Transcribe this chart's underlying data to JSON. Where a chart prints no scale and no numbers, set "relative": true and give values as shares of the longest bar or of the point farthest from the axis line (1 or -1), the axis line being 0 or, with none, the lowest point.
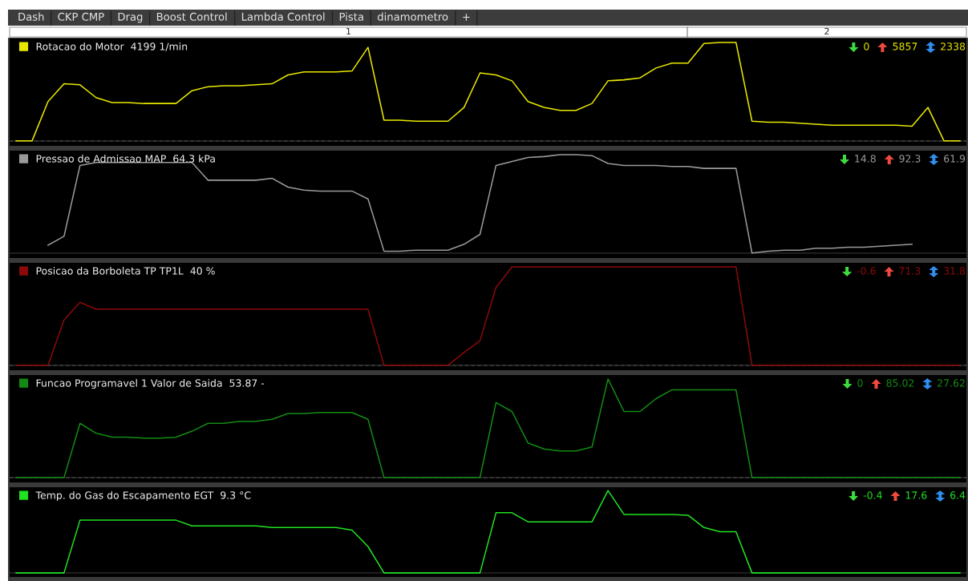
{
  "chart_data": [
    {
      "type": "other",
      "annotations": [
        "Dash",
        "CKP CMP",
        "Drag",
        "Boost Control",
        "Lambda Control",
        "Pista",
        "dinamometro",
        "+",
        "1",
        "2"
      ]
    },
    {
      "type": "line",
      "relative": true,
      "legend": "top left",
      "categories": [
        null,
        null,
        null,
        null,
        null,
        null,
        null,
        null,
        null,
        null,
        null,
        null,
        null,
        null,
        null,
        null,
        null,
        null,
        null,
        null,
        null,
        null,
        null,
        null,
        null,
        null,
        null,
        null,
        null,
        null,
        null,
        null,
        null,
        null,
        null,
        null,
        null,
        null,
        null,
        null,
        null,
        null,
        null,
        null,
        null,
        null,
        null,
        null,
        null,
        null,
        null,
        null,
        null,
        null,
        null,
        null,
        null,
        null,
        null,
        null
      ],
      "series": [
        {
          "name": "Rotacao do Motor  4199 1/min",
          "color": "#e8e800",
          "values": [
            0,
            0,
            0.4,
            0.58,
            0.57,
            0.44,
            0.39,
            0.39,
            0.38,
            0.38,
            0.38,
            0.51,
            0.55,
            0.56,
            0.56,
            0.57,
            0.58,
            0.67,
            0.7,
            0.7,
            0.7,
            0.71,
            0.95,
            0.21,
            0.21,
            0.2,
            0.2,
            0.2,
            0.34,
            0.69,
            0.67,
            0.61,
            0.4,
            0.34,
            0.31,
            0.31,
            0.38,
            0.61,
            0.62,
            0.64,
            0.74,
            0.79,
            0.79,
            0.99,
            1.0,
            1.0,
            0.2,
            0.19,
            0.19,
            0.18,
            0.17,
            0.16,
            0.16,
            0.16,
            0.16,
            0.16,
            0.15,
            0.34,
            0,
            0
          ]
        }
      ],
      "ref_lines": [
        {
          "axis": "y",
          "value": 0,
          "color": "#707070",
          "line_style": "dashed"
        }
      ],
      "annotations": [
        "0",
        "5857",
        "2338"
      ]
    },
    {
      "type": "line",
      "relative": true,
      "legend": "top left",
      "categories": [
        null,
        null,
        null,
        null,
        null,
        null,
        null,
        null,
        null,
        null,
        null,
        null,
        null,
        null,
        null,
        null,
        null,
        null,
        null,
        null,
        null,
        null,
        null,
        null,
        null,
        null,
        null,
        null,
        null,
        null,
        null,
        null,
        null,
        null,
        null,
        null,
        null,
        null,
        null,
        null,
        null,
        null,
        null,
        null,
        null,
        null,
        null,
        null,
        null,
        null,
        null,
        null,
        null,
        null,
        null,
        null,
        null,
        null,
        null,
        null
      ],
      "series": [
        {
          "name": "Pressao de Admissao MAP  64.3 kPa",
          "color": "#9a9a9a",
          "values": [
            null,
            null,
            0.08,
            0.17,
            0.89,
            0.92,
            0.92,
            0.92,
            0.92,
            0.92,
            0.92,
            0.92,
            0.74,
            0.74,
            0.74,
            0.74,
            0.76,
            0.67,
            0.64,
            0.63,
            0.63,
            0.63,
            0.55,
            0.02,
            0.02,
            0.03,
            0.03,
            0.03,
            0.09,
            0.19,
            0.89,
            0.93,
            0.97,
            0.98,
            1.0,
            1.0,
            0.99,
            0.91,
            0.89,
            0.89,
            0.89,
            0.88,
            0.88,
            0.86,
            0.86,
            0.86,
            0,
            0.02,
            0.03,
            0.03,
            0.05,
            0.05,
            0.06,
            0.06,
            0.07,
            0.08,
            0.09,
            null,
            null,
            null
          ]
        }
      ],
      "annotations": [
        "14.8",
        "92.3",
        "61.9"
      ]
    },
    {
      "type": "line",
      "relative": true,
      "legend": "top left",
      "categories": [
        null,
        null,
        null,
        null,
        null,
        null,
        null,
        null,
        null,
        null,
        null,
        null,
        null,
        null,
        null,
        null,
        null,
        null,
        null,
        null,
        null,
        null,
        null,
        null,
        null,
        null,
        null,
        null,
        null,
        null,
        null,
        null,
        null,
        null,
        null,
        null,
        null,
        null,
        null,
        null,
        null,
        null,
        null,
        null,
        null,
        null,
        null,
        null,
        null,
        null,
        null,
        null,
        null,
        null,
        null,
        null,
        null,
        null,
        null,
        null
      ],
      "series": [
        {
          "name": "Posicao da Borboleta TP TP1L  40 %",
          "color": "#8b0a0a",
          "values": [
            0,
            0,
            0,
            0.46,
            0.64,
            0.57,
            0.57,
            0.57,
            0.57,
            0.57,
            0.57,
            0.57,
            0.57,
            0.57,
            0.57,
            0.57,
            0.57,
            0.57,
            0.57,
            0.57,
            0.57,
            0.57,
            0.57,
            0,
            0,
            0,
            0,
            0,
            0.13,
            0.25,
            0.79,
            1.0,
            1.0,
            1.0,
            1.0,
            1.0,
            1.0,
            1.0,
            1.0,
            1.0,
            1.0,
            1.0,
            1.0,
            1.0,
            1.0,
            1.0,
            0,
            0,
            0,
            0,
            0,
            0,
            0,
            0,
            0,
            0,
            0,
            0,
            0,
            0
          ]
        }
      ],
      "ref_lines": [
        {
          "axis": "y",
          "value": 0,
          "color": "#707070",
          "line_style": "dashed"
        }
      ],
      "annotations": [
        "-0.6",
        "71.3",
        "31.8"
      ]
    },
    {
      "type": "line",
      "relative": true,
      "legend": "top left",
      "categories": [
        null,
        null,
        null,
        null,
        null,
        null,
        null,
        null,
        null,
        null,
        null,
        null,
        null,
        null,
        null,
        null,
        null,
        null,
        null,
        null,
        null,
        null,
        null,
        null,
        null,
        null,
        null,
        null,
        null,
        null,
        null,
        null,
        null,
        null,
        null,
        null,
        null,
        null,
        null,
        null,
        null,
        null,
        null,
        null,
        null,
        null,
        null,
        null,
        null,
        null,
        null,
        null,
        null,
        null,
        null,
        null,
        null,
        null,
        null,
        null
      ],
      "series": [
        {
          "name": "Funcao Programavel 1 Valor de Saida  53.87 -",
          "color": "#138a13",
          "values": [
            0,
            0,
            0,
            0,
            0.55,
            0.45,
            0.41,
            0.41,
            0.4,
            0.4,
            0.41,
            0.47,
            0.55,
            0.55,
            0.57,
            0.57,
            0.59,
            0.65,
            0.65,
            0.66,
            0.66,
            0.66,
            0.59,
            0,
            0,
            0,
            0,
            0,
            0,
            0,
            0.76,
            0.67,
            0.35,
            0.29,
            0.27,
            0.27,
            0.31,
            1.0,
            0.67,
            0.67,
            0.8,
            0.89,
            0.89,
            0.89,
            0.89,
            0.89,
            0,
            0,
            0,
            0,
            0,
            0,
            0,
            0,
            0,
            0,
            0,
            0,
            0,
            0
          ]
        }
      ],
      "ref_lines": [
        {
          "axis": "y",
          "value": 0,
          "color": "#707070",
          "line_style": "dashed"
        }
      ],
      "annotations": [
        "0",
        "85.02",
        "27.62"
      ]
    },
    {
      "type": "line",
      "relative": true,
      "legend": "top left",
      "categories": [
        null,
        null,
        null,
        null,
        null,
        null,
        null,
        null,
        null,
        null,
        null,
        null,
        null,
        null,
        null,
        null,
        null,
        null,
        null,
        null,
        null,
        null,
        null,
        null,
        null,
        null,
        null,
        null,
        null,
        null,
        null,
        null,
        null,
        null,
        null,
        null,
        null,
        null,
        null,
        null,
        null,
        null,
        null,
        null,
        null,
        null,
        null,
        null,
        null,
        null,
        null,
        null,
        null,
        null,
        null,
        null,
        null,
        null,
        null,
        null
      ],
      "series": [
        {
          "name": "Temp. do Gas do Escapamento EGT  9.3 °C",
          "color": "#22e022",
          "values": [
            0,
            0,
            0,
            0,
            0.64,
            0.64,
            0.64,
            0.64,
            0.64,
            0.64,
            0.64,
            0.57,
            0.57,
            0.57,
            0.57,
            0.57,
            0.55,
            0.55,
            0.55,
            0.55,
            0.55,
            0.52,
            0.32,
            0,
            0,
            0,
            0,
            0,
            0,
            0,
            0.73,
            0.73,
            0.62,
            0.62,
            0.62,
            0.62,
            0.62,
            1.0,
            0.71,
            0.71,
            0.71,
            0.71,
            0.7,
            0.55,
            0.5,
            0.5,
            0,
            0,
            0,
            0,
            0,
            0,
            0,
            0,
            0,
            0,
            0,
            0,
            0,
            0
          ]
        }
      ],
      "annotations": [
        "-0.4",
        "17.6",
        "6.4"
      ]
    }
  ]
}
